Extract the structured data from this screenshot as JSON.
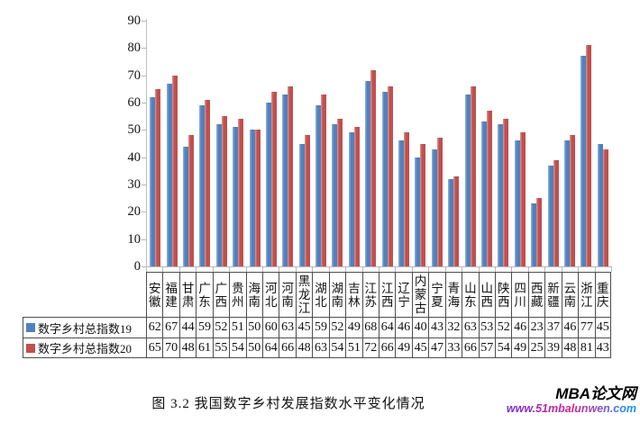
{
  "caption": "图 3.2 我国数字乡村发展指数水平变化情况",
  "watermark": {
    "brand": "MBA论文网",
    "url": "www.51mbalunwen.com",
    "url_gradient": [
      "#7B2FD0",
      "#DC2390",
      "#1E90FF"
    ]
  },
  "chart_data": {
    "type": "bar",
    "title": "",
    "xlabel": "",
    "ylabel": "",
    "ylim": [
      0,
      90
    ],
    "yticks": [
      0,
      10,
      20,
      30,
      40,
      50,
      60,
      70,
      80,
      90
    ],
    "grid": false,
    "legend_position": "data-table-left",
    "axis_color": "#b7b7b7",
    "table_border_color": "#4e4e4e",
    "categories": [
      "安徽",
      "福建",
      "甘肃",
      "广东",
      "广西",
      "贵州",
      "海南",
      "河北",
      "河南",
      "黑龙江",
      "湖北",
      "湖南",
      "吉林",
      "江苏",
      "江西",
      "辽宁",
      "内蒙古",
      "宁夏",
      "青海",
      "山东",
      "山西",
      "陕西",
      "四川",
      "西藏",
      "新疆",
      "云南",
      "浙江",
      "重庆"
    ],
    "series": [
      {
        "name": "数字乡村总指数19",
        "color": "#4F81BD",
        "values": [
          62,
          67,
          44,
          59,
          52,
          51,
          50,
          60,
          63,
          45,
          59,
          52,
          49,
          68,
          64,
          46,
          40,
          43,
          32,
          63,
          53,
          52,
          46,
          23,
          37,
          46,
          77,
          45
        ]
      },
      {
        "name": "数字乡村总指数20",
        "color": "#C0504D",
        "values": [
          65,
          70,
          48,
          61,
          55,
          54,
          50,
          64,
          66,
          48,
          63,
          54,
          51,
          72,
          66,
          49,
          45,
          47,
          33,
          66,
          57,
          54,
          49,
          25,
          39,
          48,
          81,
          43
        ]
      }
    ]
  }
}
